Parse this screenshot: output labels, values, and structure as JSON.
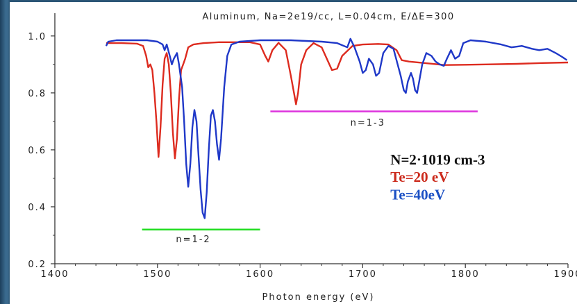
{
  "chart_data": {
    "type": "line",
    "title": "Aluminum, Na=2e19/cc, L=0.04cm, E/ΔE=300",
    "xlabel": "Photon energy (eV)",
    "ylabel": "",
    "xlim": [
      1400,
      1900
    ],
    "ylim": [
      0.2,
      1.08
    ],
    "x_ticks": [
      1400,
      1500,
      1600,
      1700,
      1800,
      1900
    ],
    "y_ticks": [
      0.2,
      0.4,
      0.6,
      0.8,
      1.0
    ],
    "x_tick_labels": [
      "1400",
      "1500",
      "1600",
      "1700",
      "1800",
      "1900"
    ],
    "y_tick_labels": [
      "0.2",
      "0.4",
      "0.6",
      "0.8",
      "1.0"
    ],
    "grid": false,
    "series": [
      {
        "color": "#dd2b1f",
        "points": [
          [
            1450,
            0.975
          ],
          [
            1465,
            0.975
          ],
          [
            1480,
            0.973
          ],
          [
            1486,
            0.965
          ],
          [
            1489,
            0.93
          ],
          [
            1491,
            0.89
          ],
          [
            1493,
            0.9
          ],
          [
            1495,
            0.88
          ],
          [
            1497,
            0.8
          ],
          [
            1499,
            0.7
          ],
          [
            1501,
            0.575
          ],
          [
            1503,
            0.68
          ],
          [
            1505,
            0.83
          ],
          [
            1507,
            0.92
          ],
          [
            1509,
            0.94
          ],
          [
            1511,
            0.9
          ],
          [
            1513,
            0.8
          ],
          [
            1515,
            0.66
          ],
          [
            1517,
            0.57
          ],
          [
            1519,
            0.64
          ],
          [
            1521,
            0.78
          ],
          [
            1523,
            0.88
          ],
          [
            1525,
            0.9
          ],
          [
            1527,
            0.92
          ],
          [
            1530,
            0.96
          ],
          [
            1535,
            0.97
          ],
          [
            1545,
            0.975
          ],
          [
            1560,
            0.978
          ],
          [
            1575,
            0.978
          ],
          [
            1590,
            0.978
          ],
          [
            1600,
            0.97
          ],
          [
            1605,
            0.93
          ],
          [
            1608,
            0.91
          ],
          [
            1612,
            0.95
          ],
          [
            1618,
            0.976
          ],
          [
            1625,
            0.95
          ],
          [
            1630,
            0.86
          ],
          [
            1633,
            0.8
          ],
          [
            1635,
            0.76
          ],
          [
            1637,
            0.8
          ],
          [
            1640,
            0.9
          ],
          [
            1645,
            0.95
          ],
          [
            1652,
            0.975
          ],
          [
            1660,
            0.96
          ],
          [
            1665,
            0.92
          ],
          [
            1670,
            0.88
          ],
          [
            1675,
            0.885
          ],
          [
            1680,
            0.93
          ],
          [
            1690,
            0.965
          ],
          [
            1700,
            0.97
          ],
          [
            1715,
            0.972
          ],
          [
            1725,
            0.97
          ],
          [
            1733,
            0.95
          ],
          [
            1738,
            0.915
          ],
          [
            1745,
            0.91
          ],
          [
            1760,
            0.905
          ],
          [
            1780,
            0.898
          ],
          [
            1800,
            0.899
          ],
          [
            1820,
            0.9
          ],
          [
            1850,
            0.902
          ],
          [
            1875,
            0.905
          ],
          [
            1900,
            0.907
          ]
        ]
      },
      {
        "color": "#1f38c8",
        "points": [
          [
            1450,
            0.965
          ],
          [
            1452,
            0.98
          ],
          [
            1460,
            0.985
          ],
          [
            1475,
            0.985
          ],
          [
            1490,
            0.985
          ],
          [
            1500,
            0.98
          ],
          [
            1505,
            0.97
          ],
          [
            1507,
            0.95
          ],
          [
            1509,
            0.97
          ],
          [
            1512,
            0.93
          ],
          [
            1514,
            0.9
          ],
          [
            1516,
            0.92
          ],
          [
            1519,
            0.94
          ],
          [
            1521,
            0.9
          ],
          [
            1524,
            0.82
          ],
          [
            1526,
            0.7
          ],
          [
            1528,
            0.55
          ],
          [
            1530,
            0.47
          ],
          [
            1532,
            0.55
          ],
          [
            1534,
            0.68
          ],
          [
            1536,
            0.74
          ],
          [
            1538,
            0.7
          ],
          [
            1540,
            0.58
          ],
          [
            1542,
            0.46
          ],
          [
            1544,
            0.38
          ],
          [
            1546,
            0.36
          ],
          [
            1548,
            0.45
          ],
          [
            1550,
            0.6
          ],
          [
            1552,
            0.72
          ],
          [
            1554,
            0.74
          ],
          [
            1556,
            0.7
          ],
          [
            1558,
            0.62
          ],
          [
            1560,
            0.565
          ],
          [
            1562,
            0.64
          ],
          [
            1565,
            0.82
          ],
          [
            1568,
            0.93
          ],
          [
            1572,
            0.97
          ],
          [
            1580,
            0.98
          ],
          [
            1600,
            0.985
          ],
          [
            1630,
            0.985
          ],
          [
            1660,
            0.98
          ],
          [
            1675,
            0.975
          ],
          [
            1685,
            0.96
          ],
          [
            1688,
            0.99
          ],
          [
            1692,
            0.96
          ],
          [
            1697,
            0.91
          ],
          [
            1700,
            0.87
          ],
          [
            1703,
            0.88
          ],
          [
            1706,
            0.92
          ],
          [
            1710,
            0.9
          ],
          [
            1713,
            0.86
          ],
          [
            1716,
            0.87
          ],
          [
            1720,
            0.94
          ],
          [
            1725,
            0.965
          ],
          [
            1730,
            0.955
          ],
          [
            1734,
            0.9
          ],
          [
            1737,
            0.86
          ],
          [
            1740,
            0.81
          ],
          [
            1742,
            0.8
          ],
          [
            1744,
            0.84
          ],
          [
            1747,
            0.87
          ],
          [
            1749,
            0.85
          ],
          [
            1751,
            0.81
          ],
          [
            1753,
            0.8
          ],
          [
            1755,
            0.84
          ],
          [
            1758,
            0.9
          ],
          [
            1762,
            0.94
          ],
          [
            1767,
            0.93
          ],
          [
            1771,
            0.91
          ],
          [
            1775,
            0.9
          ],
          [
            1779,
            0.895
          ],
          [
            1782,
            0.92
          ],
          [
            1786,
            0.95
          ],
          [
            1790,
            0.92
          ],
          [
            1794,
            0.93
          ],
          [
            1798,
            0.975
          ],
          [
            1805,
            0.985
          ],
          [
            1820,
            0.98
          ],
          [
            1835,
            0.97
          ],
          [
            1845,
            0.96
          ],
          [
            1855,
            0.965
          ],
          [
            1865,
            0.955
          ],
          [
            1872,
            0.95
          ],
          [
            1880,
            0.955
          ],
          [
            1888,
            0.94
          ],
          [
            1895,
            0.925
          ],
          [
            1899,
            0.915
          ]
        ]
      }
    ],
    "markers": [
      {
        "label": "n=1-2",
        "x1": 1485,
        "x2": 1600,
        "y": 0.32,
        "color": "#22dd22",
        "label_x": 1535,
        "label_y": 0.275
      },
      {
        "label": "n=1-3",
        "x1": 1610,
        "x2": 1812,
        "y": 0.735,
        "color": "#dd33dd",
        "label_x": 1705,
        "label_y": 0.685
      }
    ],
    "annotations": [
      {
        "text": "N=2·1019 cm-3",
        "x": 1727,
        "y": 0.548,
        "style": "black"
      },
      {
        "text": "Te=20 eV",
        "x": 1727,
        "y": 0.488,
        "style": "red"
      },
      {
        "text": "Te=40eV",
        "x": 1727,
        "y": 0.425,
        "style": "blue"
      }
    ]
  }
}
